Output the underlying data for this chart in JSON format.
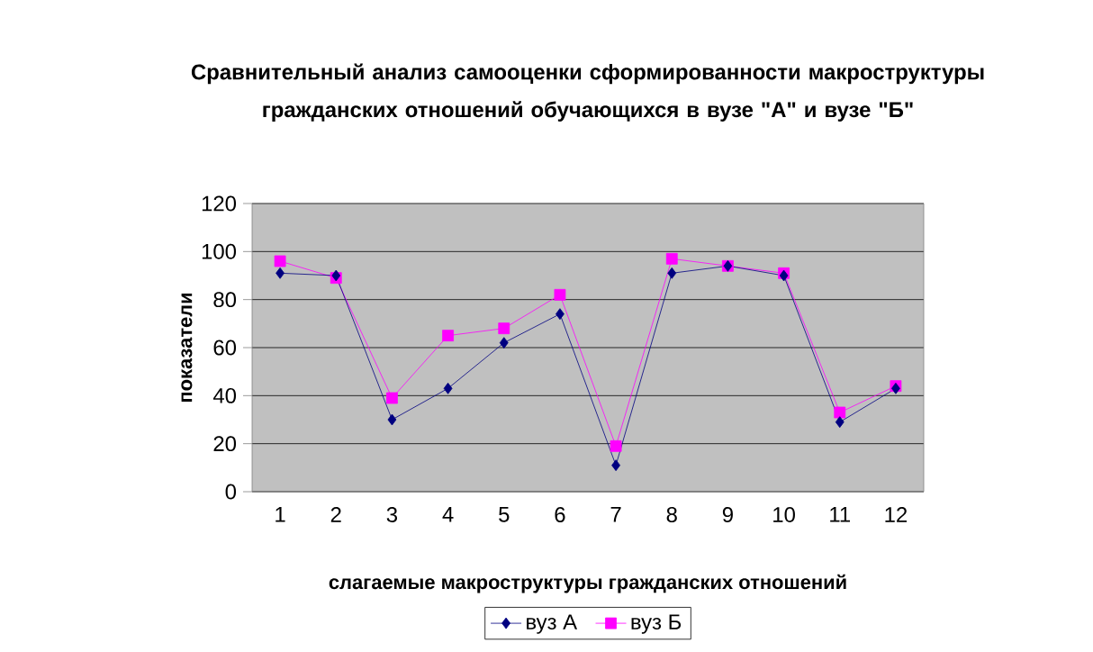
{
  "chart_data": {
    "type": "line",
    "title": "Сравнительный анализ самооценки сформированности макроструктуры гражданских отношений обучающихся в вузе \"А\" и вузе \"Б\"",
    "xlabel": "слагаемые макроструктуры гражданских отношений",
    "ylabel": "показатели",
    "categories": [
      "1",
      "2",
      "3",
      "4",
      "5",
      "6",
      "7",
      "8",
      "9",
      "10",
      "11",
      "12"
    ],
    "series": [
      {
        "name": "вуз А",
        "color": "#000080",
        "marker": "diamond",
        "values": [
          91,
          90,
          30,
          43,
          62,
          74,
          11,
          91,
          94,
          90,
          29,
          43
        ]
      },
      {
        "name": "вуз Б",
        "color": "#ff00ff",
        "marker": "square",
        "values": [
          96,
          89,
          39,
          65,
          68,
          82,
          19,
          97,
          94,
          91,
          33,
          44
        ]
      }
    ],
    "ylim": [
      0,
      120
    ],
    "yticks": [
      0,
      20,
      40,
      60,
      80,
      100,
      120
    ],
    "grid": "y",
    "legend": "bottom",
    "line_style": "solid"
  }
}
